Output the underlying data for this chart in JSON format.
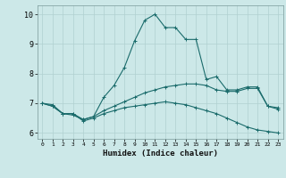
{
  "xlabel": "Humidex (Indice chaleur)",
  "bg_color": "#cce8e8",
  "grid_color": "#b0d0d0",
  "line_color": "#1a6b6b",
  "xlim": [
    -0.5,
    23.5
  ],
  "ylim": [
    5.8,
    10.3
  ],
  "xticks": [
    0,
    1,
    2,
    3,
    4,
    5,
    6,
    7,
    8,
    9,
    10,
    11,
    12,
    13,
    14,
    15,
    16,
    17,
    18,
    19,
    20,
    21,
    22,
    23
  ],
  "yticks": [
    6,
    7,
    8,
    9,
    10
  ],
  "curve1_x": [
    0,
    1,
    2,
    3,
    4,
    5,
    6,
    7,
    8,
    9,
    10,
    11,
    12,
    13,
    14,
    15,
    16,
    17,
    18,
    19,
    20,
    21,
    22,
    23
  ],
  "curve1_y": [
    7.0,
    6.9,
    6.65,
    6.6,
    6.45,
    6.55,
    7.2,
    7.6,
    8.2,
    9.1,
    9.8,
    10.0,
    9.55,
    9.55,
    9.15,
    9.15,
    7.8,
    7.9,
    7.45,
    7.45,
    7.55,
    7.55,
    6.9,
    6.85
  ],
  "curve2_x": [
    0,
    1,
    2,
    3,
    4,
    5,
    6,
    7,
    8,
    9,
    10,
    11,
    12,
    13,
    14,
    15,
    16,
    17,
    18,
    19,
    20,
    21,
    22,
    23
  ],
  "curve2_y": [
    7.0,
    6.95,
    6.65,
    6.65,
    6.45,
    6.55,
    6.75,
    6.9,
    7.05,
    7.2,
    7.35,
    7.45,
    7.55,
    7.6,
    7.65,
    7.65,
    7.6,
    7.45,
    7.4,
    7.4,
    7.5,
    7.5,
    6.9,
    6.8
  ],
  "curve3_x": [
    0,
    1,
    2,
    3,
    4,
    5,
    6,
    7,
    8,
    9,
    10,
    11,
    12,
    13,
    14,
    15,
    16,
    17,
    18,
    19,
    20,
    21,
    22,
    23
  ],
  "curve3_y": [
    7.0,
    6.9,
    6.65,
    6.65,
    6.4,
    6.5,
    6.65,
    6.75,
    6.85,
    6.9,
    6.95,
    7.0,
    7.05,
    7.0,
    6.95,
    6.85,
    6.75,
    6.65,
    6.5,
    6.35,
    6.2,
    6.1,
    6.05,
    6.0
  ]
}
